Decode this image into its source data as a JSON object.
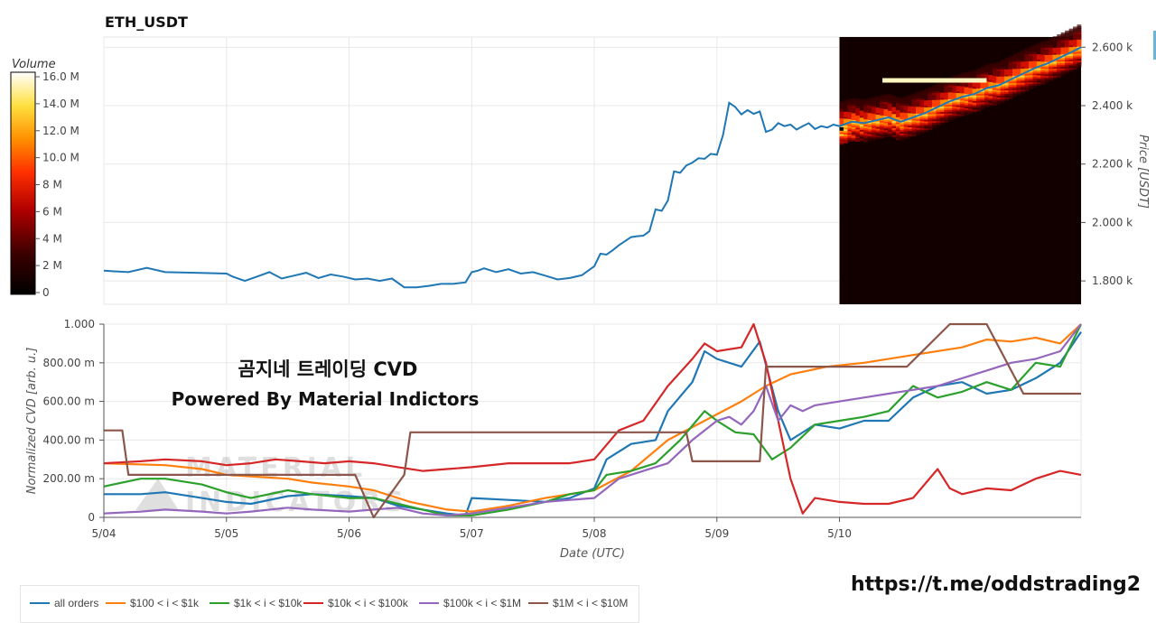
{
  "title": "ETH_USDT",
  "watermark_lines": [
    "곰지네 트레이딩 CVD",
    "Powered By Material Indictors"
  ],
  "link_text": "https://t.me/oddstrading2",
  "chart_data": [
    {
      "type": "line",
      "title": "ETH_USDT",
      "ylabel": "Price [USDT]",
      "ylim": [
        1720,
        2635
      ],
      "yticks": [
        1800,
        2000,
        2200,
        2400,
        2600
      ],
      "ytick_labels": [
        "1.800 k",
        "2.000 k",
        "2.200 k",
        "2.400 k",
        "2.600 k"
      ],
      "x_start_day": 4,
      "xlim_days": [
        0,
        7.97
      ],
      "grid": true,
      "heatmap_region": {
        "x_from_day": 6.0,
        "colorbar_label": "Volume",
        "colorbar_ticks": [
          "0",
          "2 M",
          "4 M",
          "6 M",
          "8 M",
          "10.0 M",
          "12.0 M",
          "14.0 M",
          "16.0 M"
        ]
      },
      "series": [
        {
          "color": "#1f77b4",
          "x": [
            0,
            0.2,
            0.35,
            0.5,
            0.75,
            1.0,
            1.05,
            1.15,
            1.25,
            1.35,
            1.45,
            1.55,
            1.65,
            1.75,
            1.85,
            1.95,
            2.05,
            2.15,
            2.25,
            2.35,
            2.45,
            2.55,
            2.65,
            2.75,
            2.85,
            2.95,
            3.0,
            3.05,
            3.1,
            3.2,
            3.3,
            3.4,
            3.5,
            3.6,
            3.7,
            3.8,
            3.9,
            3.95,
            4.0,
            4.05,
            4.1,
            4.15,
            4.2,
            4.3,
            4.35,
            4.4,
            4.45,
            4.5,
            4.55,
            4.6,
            4.65,
            4.7,
            4.75,
            4.8,
            4.85,
            4.9,
            4.95,
            5.0,
            5.05,
            5.1,
            5.15,
            5.2,
            5.25,
            5.3,
            5.35,
            5.4,
            5.45,
            5.5,
            5.55,
            5.6,
            5.65,
            5.7,
            5.75,
            5.8,
            5.85,
            5.9,
            5.95,
            6.0,
            6.1,
            6.2,
            6.3,
            6.4,
            6.5,
            6.6,
            6.7,
            6.8,
            6.9,
            7.0,
            7.1,
            7.2,
            7.3,
            7.4,
            7.5,
            7.6,
            7.7,
            7.8,
            7.9,
            7.97
          ],
          "y": [
            1835,
            1830,
            1845,
            1830,
            1828,
            1825,
            1815,
            1800,
            1815,
            1830,
            1808,
            1818,
            1828,
            1810,
            1822,
            1815,
            1805,
            1808,
            1800,
            1808,
            1778,
            1778,
            1783,
            1790,
            1790,
            1795,
            1830,
            1835,
            1843,
            1830,
            1840,
            1825,
            1830,
            1818,
            1805,
            1810,
            1820,
            1835,
            1850,
            1893,
            1890,
            1905,
            1922,
            1950,
            1953,
            1955,
            1970,
            2045,
            2040,
            2075,
            2175,
            2170,
            2195,
            2205,
            2220,
            2218,
            2235,
            2232,
            2300,
            2410,
            2395,
            2370,
            2385,
            2372,
            2380,
            2310,
            2318,
            2340,
            2330,
            2335,
            2318,
            2330,
            2340,
            2320,
            2330,
            2325,
            2335,
            2330,
            2345,
            2340,
            2350,
            2360,
            2345,
            2360,
            2375,
            2395,
            2415,
            2430,
            2440,
            2460,
            2470,
            2490,
            2510,
            2530,
            2545,
            2565,
            2585,
            2600
          ]
        }
      ]
    },
    {
      "type": "line",
      "xlabel": "Date (UTC)",
      "ylabel": "Normalized CVD [arb. u.]",
      "ylim": [
        0,
        1.0
      ],
      "yticks": [
        0,
        0.2,
        0.4,
        0.6,
        0.8,
        1.0
      ],
      "ytick_labels": [
        "0",
        "200.00 m",
        "400.00 m",
        "600.00 m",
        "800.00 m",
        "1.000"
      ],
      "categories": [
        "5/04",
        "5/05",
        "5/06",
        "5/07",
        "5/08",
        "5/09",
        "5/10"
      ],
      "grid": true,
      "legend": "bottom-left",
      "series": [
        {
          "name": "all orders",
          "color": "#1f77b4",
          "x": [
            0,
            0.3,
            0.5,
            0.8,
            1.0,
            1.2,
            1.5,
            1.7,
            2.0,
            2.2,
            2.4,
            2.6,
            2.8,
            2.95,
            3.0,
            3.3,
            3.6,
            3.8,
            4.0,
            4.1,
            4.3,
            4.5,
            4.6,
            4.8,
            4.9,
            5.0,
            5.2,
            5.35,
            5.5,
            5.6,
            5.8,
            6.0,
            6.2,
            6.4,
            6.6,
            6.8,
            7.0,
            7.2,
            7.4,
            7.6,
            7.8,
            7.97
          ],
          "y": [
            0.12,
            0.12,
            0.13,
            0.1,
            0.08,
            0.07,
            0.11,
            0.12,
            0.11,
            0.1,
            0.06,
            0.04,
            0.02,
            0.01,
            0.1,
            0.09,
            0.08,
            0.1,
            0.15,
            0.3,
            0.38,
            0.4,
            0.55,
            0.7,
            0.86,
            0.82,
            0.78,
            0.91,
            0.55,
            0.4,
            0.48,
            0.46,
            0.5,
            0.5,
            0.62,
            0.68,
            0.7,
            0.64,
            0.66,
            0.72,
            0.8,
            0.96
          ]
        },
        {
          "name": "$100 < i < $1k",
          "color": "#ff7f0e",
          "x": [
            0,
            0.5,
            0.8,
            1.0,
            1.5,
            1.7,
            2.0,
            2.2,
            2.5,
            2.8,
            3.0,
            3.3,
            3.6,
            4.0,
            4.3,
            4.6,
            4.9,
            5.2,
            5.4,
            5.6,
            5.9,
            6.2,
            6.6,
            7.0,
            7.2,
            7.4,
            7.6,
            7.8,
            7.97
          ],
          "y": [
            0.28,
            0.27,
            0.25,
            0.22,
            0.2,
            0.18,
            0.16,
            0.14,
            0.08,
            0.04,
            0.03,
            0.06,
            0.1,
            0.14,
            0.24,
            0.4,
            0.5,
            0.6,
            0.68,
            0.74,
            0.78,
            0.8,
            0.84,
            0.88,
            0.92,
            0.91,
            0.93,
            0.9,
            1.0
          ]
        },
        {
          "name": "$1k < i < $10k",
          "color": "#2ca02c",
          "x": [
            0,
            0.3,
            0.5,
            0.8,
            1.0,
            1.2,
            1.5,
            1.7,
            2.0,
            2.2,
            2.4,
            2.6,
            2.8,
            3.0,
            3.3,
            3.6,
            3.8,
            4.0,
            4.1,
            4.3,
            4.5,
            4.7,
            4.9,
            5.0,
            5.15,
            5.3,
            5.45,
            5.6,
            5.8,
            6.0,
            6.2,
            6.4,
            6.6,
            6.8,
            7.0,
            7.2,
            7.4,
            7.6,
            7.8,
            7.97
          ],
          "y": [
            0.16,
            0.2,
            0.2,
            0.17,
            0.13,
            0.1,
            0.14,
            0.12,
            0.1,
            0.1,
            0.07,
            0.04,
            0.01,
            0.01,
            0.04,
            0.08,
            0.12,
            0.14,
            0.22,
            0.24,
            0.28,
            0.4,
            0.55,
            0.5,
            0.44,
            0.43,
            0.3,
            0.36,
            0.48,
            0.5,
            0.52,
            0.55,
            0.68,
            0.62,
            0.65,
            0.7,
            0.66,
            0.8,
            0.78,
            1.0
          ]
        },
        {
          "name": "$10k < i < $100k",
          "color": "#d62728",
          "x": [
            0,
            0.3,
            0.5,
            0.8,
            1.0,
            1.2,
            1.4,
            1.6,
            1.8,
            2.0,
            2.2,
            2.4,
            2.6,
            2.8,
            3.0,
            3.3,
            3.6,
            3.8,
            4.0,
            4.2,
            4.4,
            4.6,
            4.8,
            4.9,
            5.0,
            5.2,
            5.3,
            5.4,
            5.5,
            5.6,
            5.7,
            5.8,
            6.0,
            6.2,
            6.4,
            6.6,
            6.8,
            6.9,
            7.0,
            7.2,
            7.4,
            7.6,
            7.8,
            7.97
          ],
          "y": [
            0.28,
            0.29,
            0.3,
            0.29,
            0.27,
            0.28,
            0.3,
            0.29,
            0.28,
            0.29,
            0.28,
            0.26,
            0.24,
            0.25,
            0.26,
            0.28,
            0.28,
            0.28,
            0.3,
            0.45,
            0.5,
            0.68,
            0.82,
            0.9,
            0.86,
            0.88,
            1.0,
            0.8,
            0.5,
            0.2,
            0.02,
            0.1,
            0.08,
            0.07,
            0.07,
            0.1,
            0.25,
            0.15,
            0.12,
            0.15,
            0.14,
            0.2,
            0.24,
            0.22
          ]
        },
        {
          "name": "$100k < i < $1M",
          "color": "#9467bd",
          "x": [
            0,
            0.3,
            0.5,
            0.8,
            1.0,
            1.2,
            1.5,
            1.7,
            2.0,
            2.2,
            2.4,
            2.6,
            2.8,
            3.0,
            3.3,
            3.6,
            3.8,
            4.0,
            4.2,
            4.4,
            4.6,
            4.8,
            5.0,
            5.1,
            5.2,
            5.3,
            5.4,
            5.5,
            5.6,
            5.7,
            5.8,
            6.0,
            6.2,
            6.4,
            6.6,
            6.8,
            7.0,
            7.2,
            7.4,
            7.6,
            7.8,
            7.97
          ],
          "y": [
            0.02,
            0.03,
            0.04,
            0.03,
            0.02,
            0.03,
            0.05,
            0.04,
            0.03,
            0.04,
            0.05,
            0.02,
            0.01,
            0.02,
            0.05,
            0.08,
            0.09,
            0.1,
            0.2,
            0.24,
            0.28,
            0.4,
            0.5,
            0.52,
            0.48,
            0.55,
            0.68,
            0.5,
            0.58,
            0.55,
            0.58,
            0.6,
            0.62,
            0.64,
            0.66,
            0.68,
            0.72,
            0.76,
            0.8,
            0.82,
            0.86,
            1.0
          ]
        },
        {
          "name": "$1M < i < $10M",
          "color": "#8c564b",
          "x": [
            0,
            0.15,
            0.2,
            0.5,
            1.0,
            1.1,
            1.4,
            1.5,
            2.05,
            2.2,
            2.45,
            2.5,
            3.0,
            3.5,
            4.0,
            4.7,
            4.75,
            4.8,
            5.35,
            5.4,
            6.0,
            6.5,
            6.55,
            6.9,
            7.0,
            7.2,
            7.5,
            7.97
          ],
          "y": [
            0.45,
            0.45,
            0.22,
            0.22,
            0.22,
            0.22,
            0.22,
            0.22,
            0.22,
            0.0,
            0.22,
            0.44,
            0.44,
            0.44,
            0.44,
            0.44,
            0.44,
            0.29,
            0.29,
            0.78,
            0.78,
            0.78,
            0.78,
            1.0,
            1.0,
            1.0,
            0.64,
            0.64
          ]
        }
      ]
    }
  ]
}
